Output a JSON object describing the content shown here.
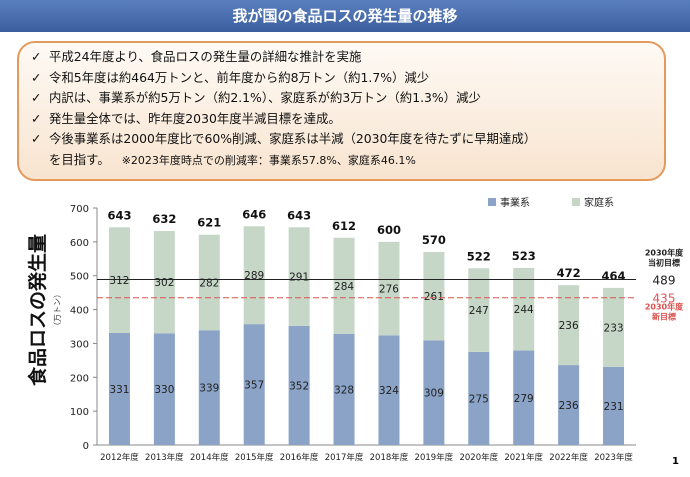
{
  "header": {
    "title": "我が国の食品ロスの発生量の推移"
  },
  "summary": {
    "check_glyph": "✓",
    "bullets": [
      "平成24年度より、食品ロスの発生量の詳細な推計を実施",
      "令和5年度は約464万トンと、前年度から約8万トン（約1.7%）減少",
      "内訳は、事業系が約5万トン（約2.1%）、家庭系が約3万トン（約1.3%）減少",
      "発生量全体では、昨年度2030年度半減目標を達成。",
      "今後事業系は2000年度比で60%削減、家庭系は半減（2030年度を待たずに早期達成）"
    ],
    "continuation": "を目指す。",
    "note": "※2023年度時点での削減率：事業系57.8%、家庭系46.1%"
  },
  "chart_data": {
    "type": "bar",
    "stacked": true,
    "categories": [
      "2012年度",
      "2013年度",
      "2014年度",
      "2015年度",
      "2016年度",
      "2017年度",
      "2018年度",
      "2019年度",
      "2020年度",
      "2021年度",
      "2022年度",
      "2023年度"
    ],
    "series": [
      {
        "name": "事業系",
        "color": "#8aa3c7",
        "values": [
          331,
          330,
          339,
          357,
          352,
          328,
          324,
          309,
          275,
          279,
          236,
          231
        ]
      },
      {
        "name": "家庭系",
        "color": "#c6d7c7",
        "values": [
          312,
          302,
          282,
          289,
          291,
          284,
          276,
          261,
          247,
          244,
          236,
          233
        ]
      }
    ],
    "totals": [
      643,
      632,
      621,
      646,
      643,
      612,
      600,
      570,
      522,
      523,
      472,
      464
    ],
    "ylabel": "食品ロスの発生量",
    "yunit": "（万トン）",
    "ylim": [
      0,
      700
    ],
    "yticks": [
      0,
      100,
      200,
      300,
      400,
      500,
      600,
      700
    ],
    "grid": false,
    "legend_position": "top-right",
    "reference_lines": [
      {
        "value": 489,
        "label_value": "489",
        "caption": [
          "2030年度",
          "当初目標"
        ],
        "color": "#222222",
        "value_color": "#222222",
        "style": "solid"
      },
      {
        "value": 435,
        "label_value": "435",
        "caption": [
          "2030年度",
          "新目標"
        ],
        "color": "#d9534f",
        "value_color": "#e0575a",
        "style": "dashed"
      }
    ]
  },
  "footer": {
    "page_number": "1"
  }
}
